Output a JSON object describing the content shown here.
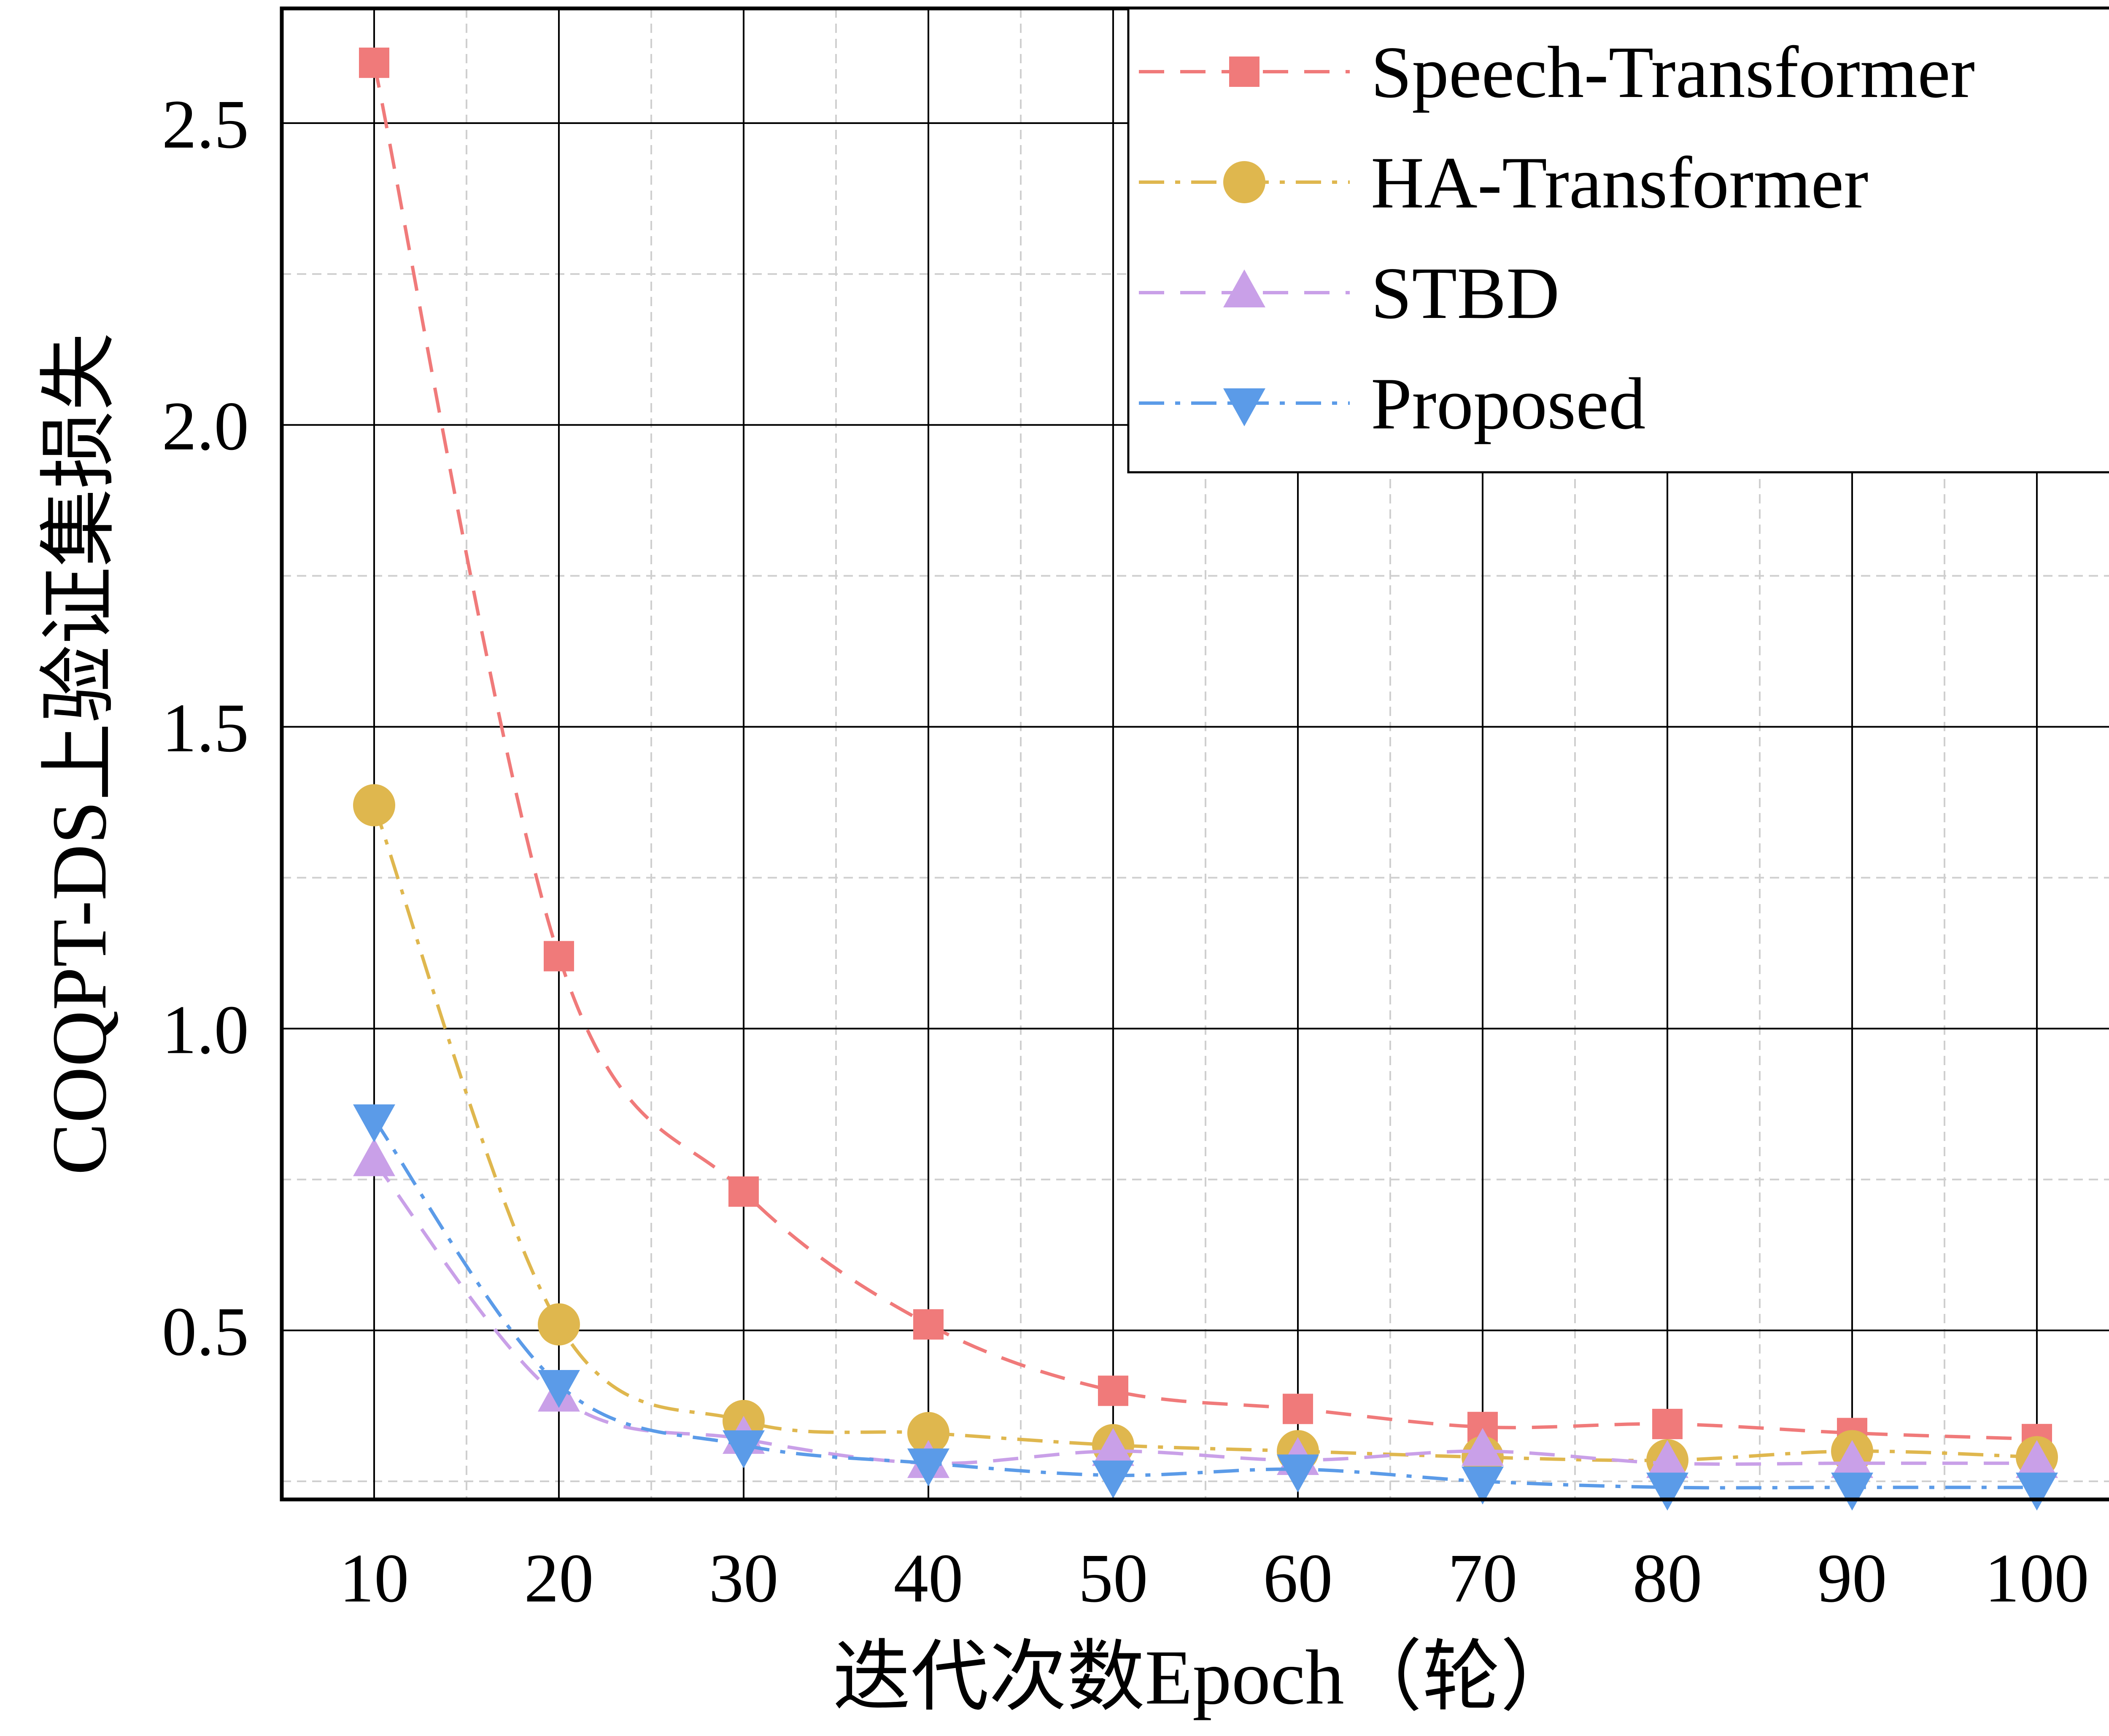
{
  "chart_data": {
    "type": "line",
    "title": "",
    "xlabel": "迭代次数Epoch（轮）",
    "ylabel": "COQPT-DS上验证集损失",
    "x": [
      10,
      20,
      30,
      40,
      50,
      60,
      70,
      80,
      90,
      100
    ],
    "xlim": [
      5,
      105
    ],
    "ylim": [
      0.22,
      2.69
    ],
    "x_ticks": [
      "10",
      "20",
      "30",
      "40",
      "50",
      "60",
      "70",
      "80",
      "90",
      "100"
    ],
    "y_ticks": [
      {
        "value": 0.5,
        "label": "0.5"
      },
      {
        "value": 1.0,
        "label": "1.0"
      },
      {
        "value": 1.5,
        "label": "1.5"
      },
      {
        "value": 2.0,
        "label": "2.0"
      },
      {
        "value": 2.5,
        "label": "2.5"
      }
    ],
    "grid": true,
    "legend_position": "top-right",
    "series": [
      {
        "name": "Speech-Transformer",
        "color": "#f07a7a",
        "marker": "square",
        "linestyle": "dashed",
        "values": [
          2.6,
          1.12,
          0.73,
          0.51,
          0.4,
          0.37,
          0.34,
          0.345,
          0.33,
          0.32
        ]
      },
      {
        "name": "HA-Transformer",
        "color": "#dfb74e",
        "marker": "circle",
        "linestyle": "dashdot",
        "values": [
          1.37,
          0.51,
          0.35,
          0.33,
          0.31,
          0.3,
          0.29,
          0.285,
          0.3,
          0.29
        ]
      },
      {
        "name": "STBD",
        "color": "#c9a0e8",
        "marker": "triangle-up",
        "linestyle": "dashed",
        "values": [
          0.78,
          0.39,
          0.32,
          0.28,
          0.3,
          0.285,
          0.3,
          0.28,
          0.28,
          0.28
        ]
      },
      {
        "name": "Proposed",
        "color": "#5b9be8",
        "marker": "triangle-down",
        "linestyle": "dashdot",
        "values": [
          0.85,
          0.41,
          0.31,
          0.28,
          0.26,
          0.27,
          0.25,
          0.24,
          0.24,
          0.24
        ]
      }
    ]
  }
}
